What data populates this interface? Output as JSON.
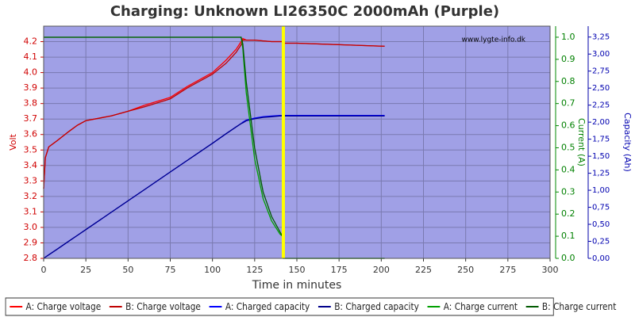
{
  "chart_data": {
    "type": "line",
    "title": "Charging: Unknown LI26350C 2000mAh (Purple)",
    "watermark": "www.lygte-info.dk",
    "xlabel": "Time in minutes",
    "ylabel": "Volt",
    "y2label": "Current (A)",
    "y3label": "Capacity (Ah)",
    "xlim": [
      0,
      300
    ],
    "xticks": [
      0,
      25,
      50,
      75,
      100,
      125,
      150,
      175,
      200,
      225,
      250,
      275,
      300
    ],
    "ylim": [
      2.8,
      4.3
    ],
    "yticks": [
      2.8,
      2.9,
      {
        "value": 3.0,
        "label": "3.0"
      },
      3.1,
      3.2,
      3.3,
      3.4,
      3.5,
      3.6,
      3.7,
      3.8,
      3.9,
      {
        "value": 4.0,
        "label": "4.0"
      },
      4.1,
      4.2
    ],
    "y2lim": [
      0,
      1.05
    ],
    "y2ticks": [
      {
        "value": 0,
        "label": "0.0"
      },
      0.1,
      0.2,
      0.3,
      0.4,
      0.5,
      0.6,
      0.7,
      0.8,
      0.9,
      {
        "value": 1.0,
        "label": "1.0"
      }
    ],
    "y3lim": [
      0,
      3.41
    ],
    "y3ticks": [
      {
        "value": 0,
        "label": "0,00"
      },
      {
        "value": 0.25,
        "label": "0,25"
      },
      {
        "value": 0.5,
        "label": "0,50"
      },
      {
        "value": 0.75,
        "label": "0,75"
      },
      {
        "value": 1.0,
        "label": "1,00"
      },
      {
        "value": 1.25,
        "label": "1,25"
      },
      {
        "value": 1.5,
        "label": "1,50"
      },
      {
        "value": 1.75,
        "label": "1,75"
      },
      {
        "value": 2.0,
        "label": "2,00"
      },
      {
        "value": 2.25,
        "label": "2,25"
      },
      {
        "value": 2.5,
        "label": "2,50"
      },
      {
        "value": 2.75,
        "label": "2,75"
      },
      {
        "value": 3.0,
        "label": "3,00"
      },
      {
        "value": 3.25,
        "label": "3,25"
      }
    ],
    "grid": true,
    "vline": {
      "x": 142,
      "color": "#ffff00"
    },
    "x": [
      0,
      1,
      3,
      8,
      15,
      20,
      25,
      40,
      50,
      60,
      75,
      85,
      100,
      108,
      114,
      117,
      118,
      120,
      125,
      130,
      135,
      140,
      141.5,
      142,
      150,
      175,
      202
    ],
    "series": [
      {
        "name": "A: Charge voltage",
        "color": "#ff0000",
        "axis": "y",
        "values": [
          3.25,
          3.45,
          3.52,
          3.56,
          3.62,
          3.66,
          3.69,
          3.72,
          3.75,
          3.79,
          3.84,
          3.91,
          4.0,
          4.08,
          4.15,
          4.2,
          4.22,
          4.21,
          4.21,
          4.205,
          4.2,
          4.2,
          4.2,
          4.19,
          4.19,
          4.18,
          4.17
        ]
      },
      {
        "name": "B: Charge voltage",
        "color": "#c00000",
        "axis": "y",
        "values": [
          3.25,
          3.45,
          3.52,
          3.56,
          3.62,
          3.66,
          3.69,
          3.72,
          3.75,
          3.78,
          3.83,
          3.9,
          3.99,
          4.06,
          4.13,
          4.18,
          4.21,
          4.21,
          4.21,
          4.205,
          4.2,
          4.2,
          4.2,
          4.19,
          4.19,
          4.18,
          4.17
        ]
      },
      {
        "name": "A: Charged capacity",
        "color": "#0000ff",
        "axis": "y3",
        "values": [
          0,
          0.017,
          0.051,
          0.135,
          0.254,
          0.338,
          0.423,
          0.676,
          0.845,
          1.014,
          1.268,
          1.437,
          1.69,
          1.83,
          1.93,
          1.98,
          2.0,
          2.03,
          2.06,
          2.08,
          2.09,
          2.1,
          2.1,
          2.1,
          2.1,
          2.1,
          2.1
        ]
      },
      {
        "name": "B: Charged capacity",
        "color": "#00008b",
        "axis": "y3",
        "values": [
          0,
          0.017,
          0.051,
          0.135,
          0.254,
          0.338,
          0.423,
          0.676,
          0.845,
          1.014,
          1.268,
          1.437,
          1.69,
          1.83,
          1.93,
          1.98,
          1.99,
          2.02,
          2.05,
          2.07,
          2.08,
          2.09,
          2.09,
          2.09,
          2.09,
          2.09,
          2.09
        ]
      },
      {
        "name": "A: Charge current",
        "color": "#00a000",
        "axis": "y2",
        "values": [
          1.0,
          1.0,
          1.0,
          1.0,
          1.0,
          1.0,
          1.0,
          1.0,
          1.0,
          1.0,
          1.0,
          1.0,
          1.0,
          1.0,
          1.0,
          1.0,
          0.95,
          0.75,
          0.45,
          0.27,
          0.17,
          0.11,
          0.1,
          0,
          0,
          0,
          0
        ]
      },
      {
        "name": "B: Charge current",
        "color": "#005a00",
        "axis": "y2",
        "values": [
          1.0,
          1.0,
          1.0,
          1.0,
          1.0,
          1.0,
          1.0,
          1.0,
          1.0,
          1.0,
          1.0,
          1.0,
          1.0,
          1.0,
          1.0,
          1.0,
          0.97,
          0.8,
          0.5,
          0.3,
          0.19,
          0.12,
          0.1,
          0,
          0,
          0,
          0
        ]
      }
    ]
  }
}
